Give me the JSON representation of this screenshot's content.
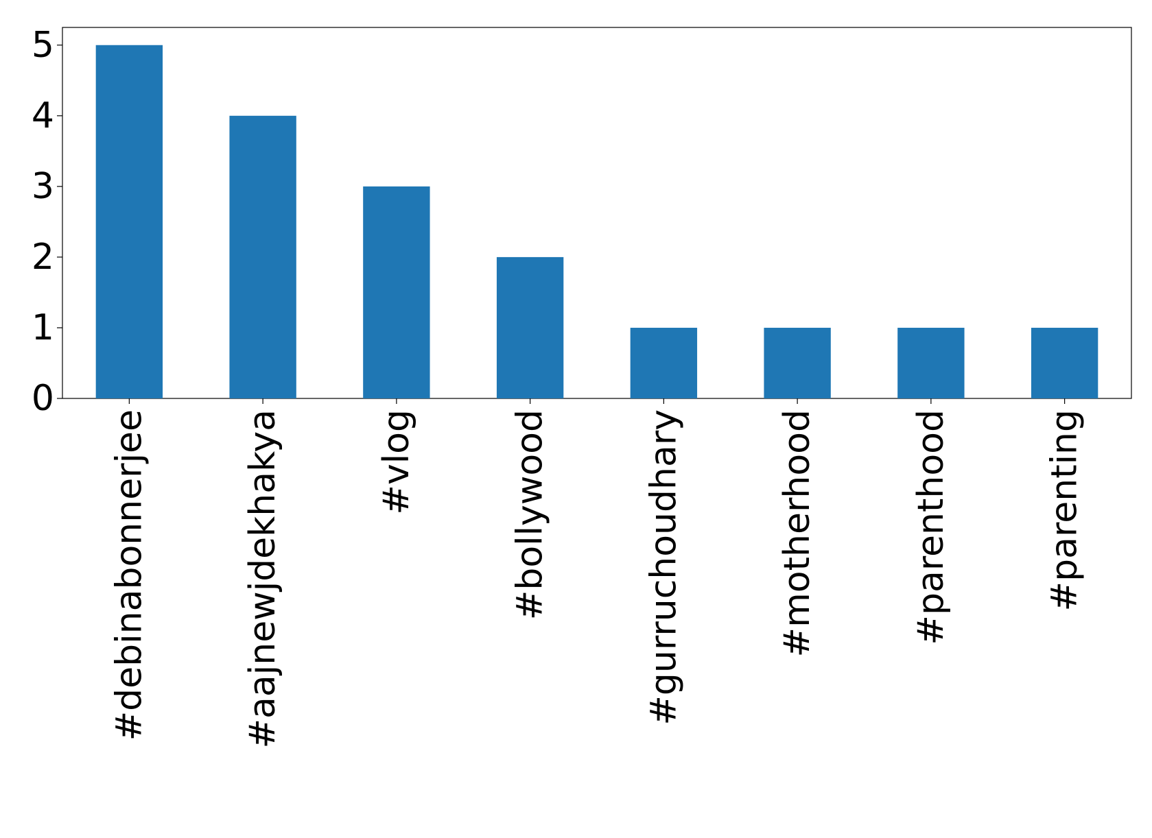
{
  "chart_data": {
    "type": "bar",
    "categories": [
      "#debinabonnerjee",
      "#aajnewjdekhakya",
      "#vlog",
      "#bollywood",
      "#gurruchoudhary",
      "#motherhood",
      "#parenthood",
      "#parenting"
    ],
    "values": [
      5,
      4,
      3,
      2,
      1,
      1,
      1,
      1
    ],
    "color": "#1f77b4",
    "ylim": [
      0,
      5.25
    ],
    "yticks": [
      0,
      1,
      2,
      3,
      4,
      5
    ],
    "grid": false
  }
}
